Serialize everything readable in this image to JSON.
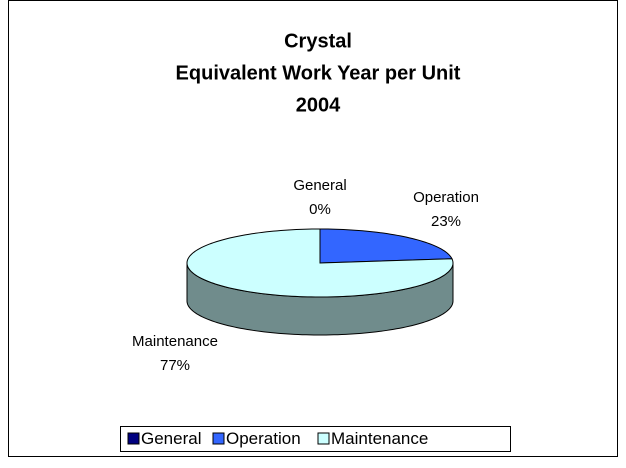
{
  "chart_data": {
    "type": "pie",
    "title": [
      "Crystal",
      "Equivalent Work Year per Unit",
      "2004"
    ],
    "categories": [
      "General",
      "Operation",
      "Maintenance"
    ],
    "values": [
      0,
      23,
      77
    ],
    "value_labels": [
      "0%",
      "23%",
      "77%"
    ],
    "colors": [
      "#000080",
      "#3366ff",
      "#ccffff"
    ],
    "legend": "bottom"
  }
}
